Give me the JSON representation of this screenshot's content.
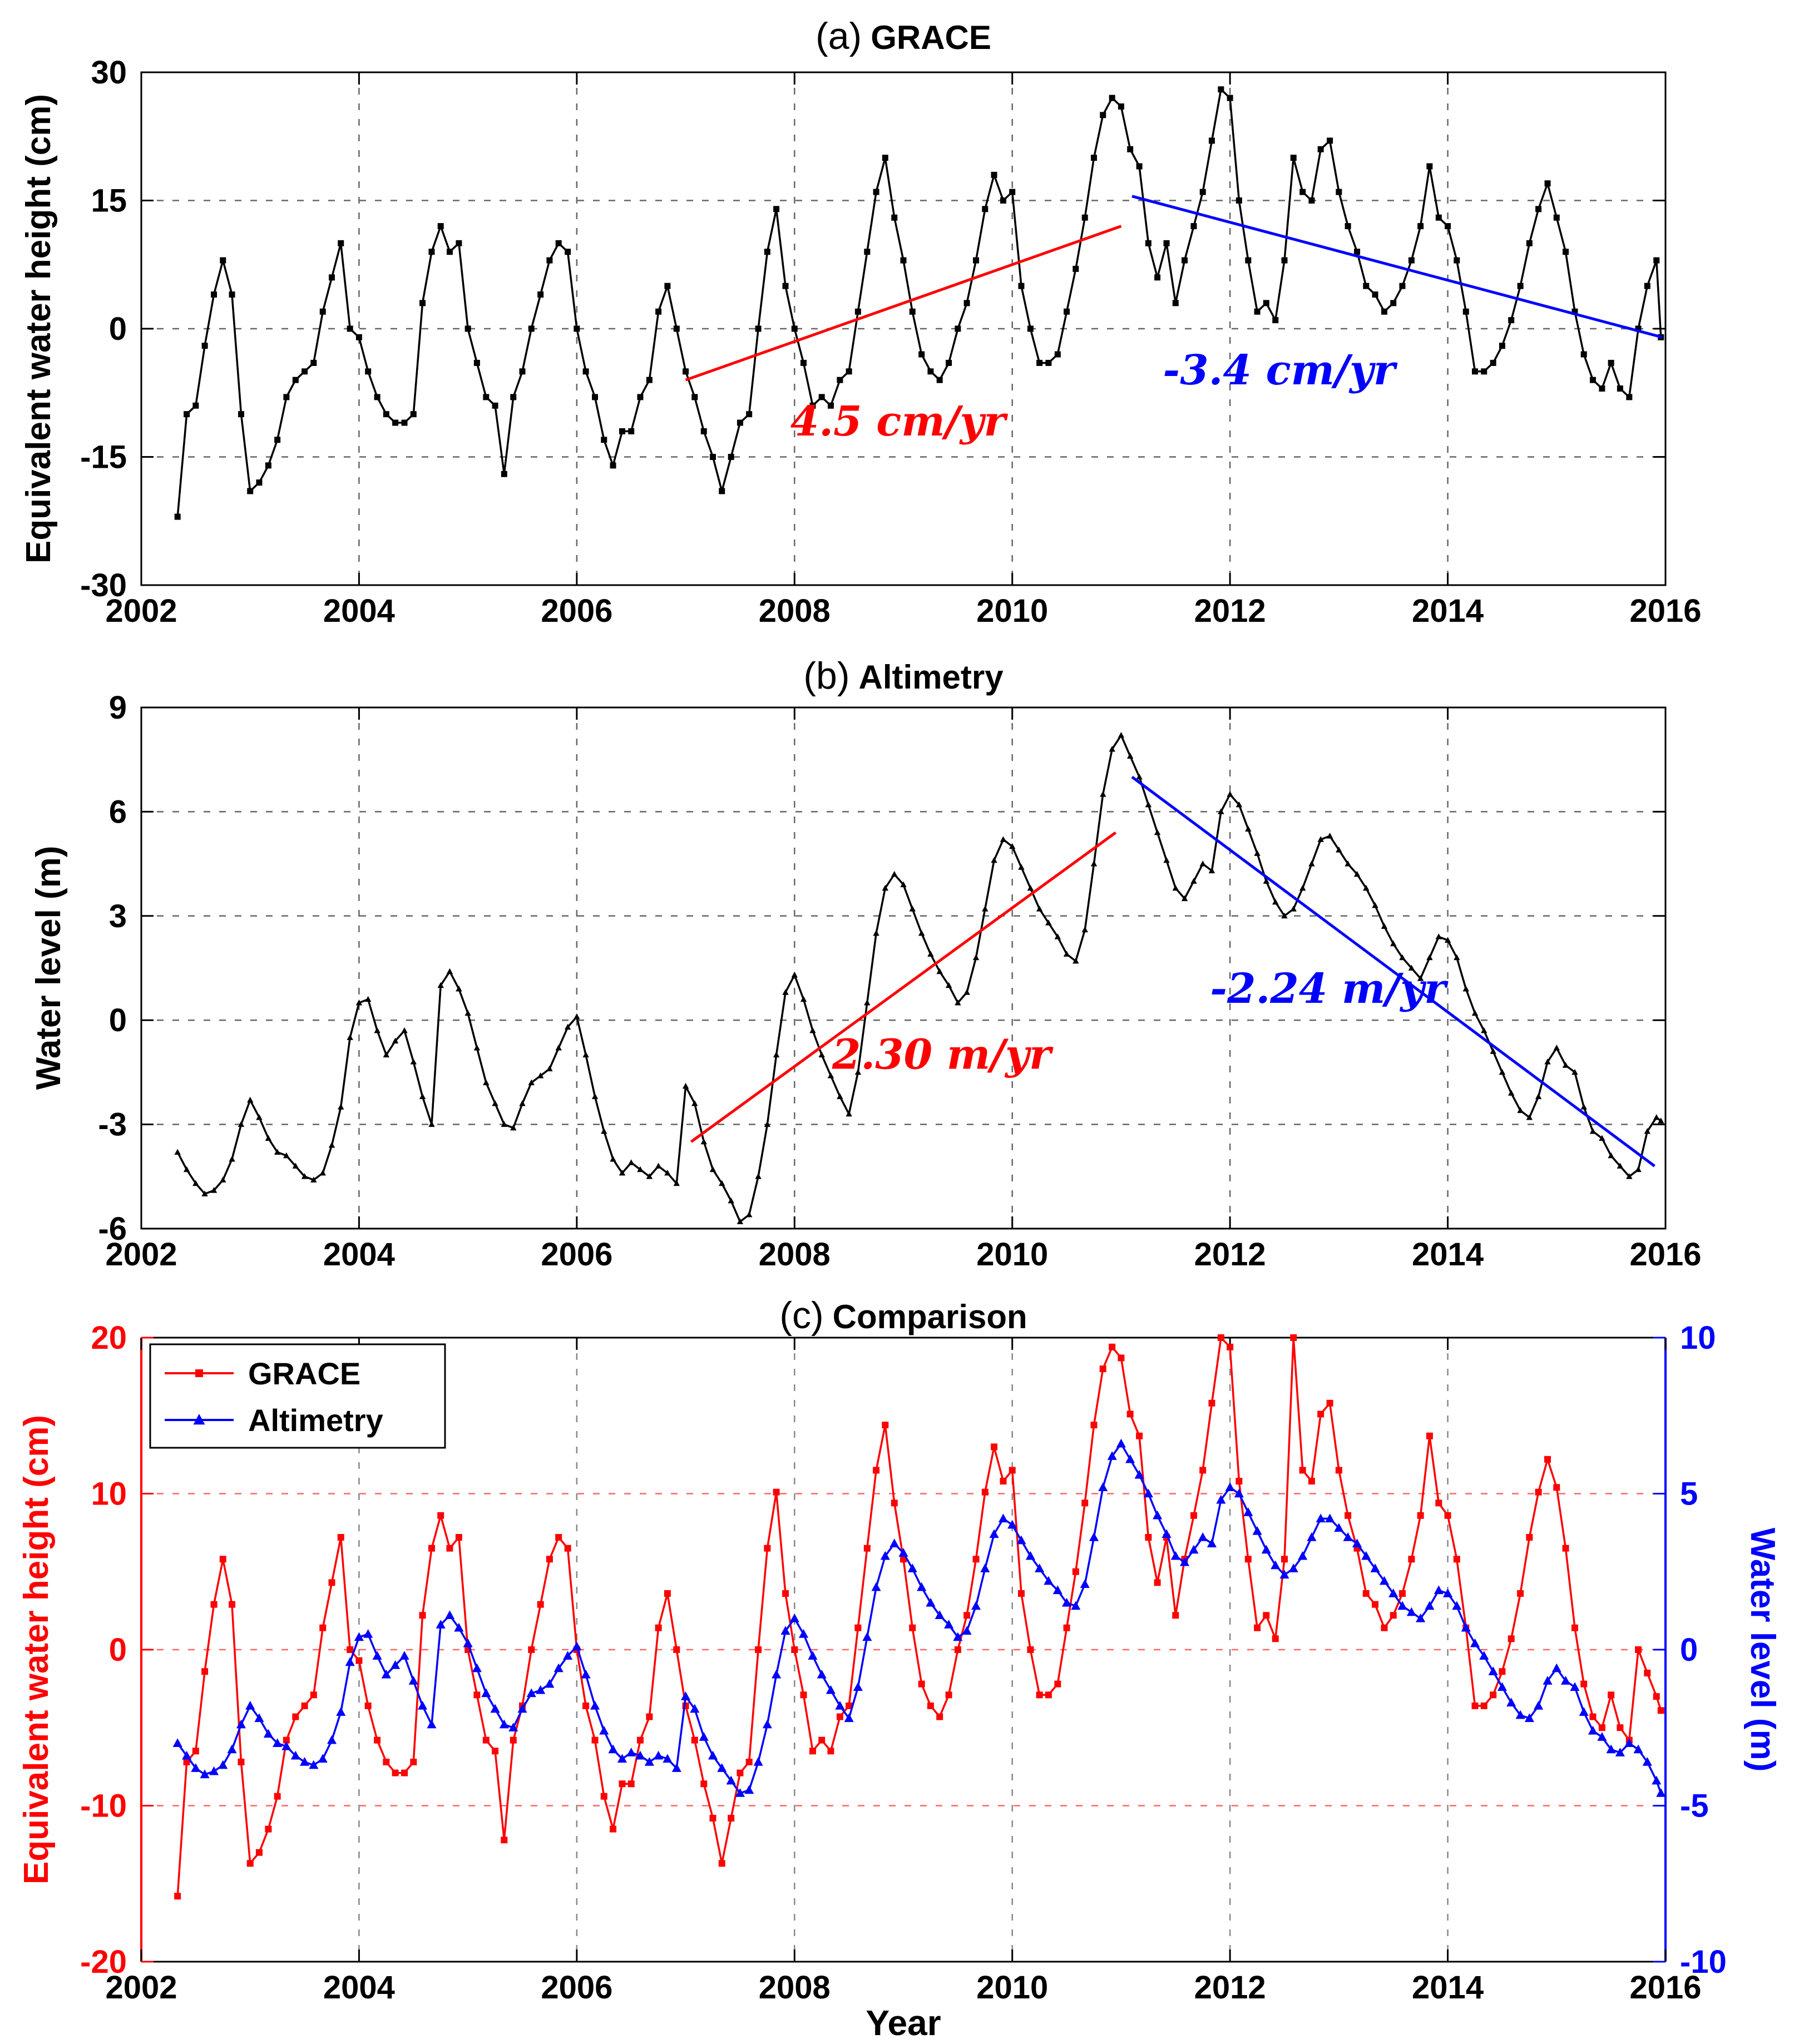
{
  "xlabel": "Year",
  "chart_data": {
    "type": "line",
    "x_monthly": [
      2002.333,
      2002.417,
      2002.5,
      2002.583,
      2002.667,
      2002.75,
      2002.833,
      2002.917,
      2003.0,
      2003.083,
      2003.167,
      2003.25,
      2003.333,
      2003.417,
      2003.5,
      2003.583,
      2003.667,
      2003.75,
      2003.833,
      2003.917,
      2004.0,
      2004.083,
      2004.167,
      2004.25,
      2004.333,
      2004.417,
      2004.5,
      2004.583,
      2004.667,
      2004.75,
      2004.833,
      2004.917,
      2005.0,
      2005.083,
      2005.167,
      2005.25,
      2005.333,
      2005.417,
      2005.5,
      2005.583,
      2005.667,
      2005.75,
      2005.833,
      2005.917,
      2006.0,
      2006.083,
      2006.167,
      2006.25,
      2006.333,
      2006.417,
      2006.5,
      2006.583,
      2006.667,
      2006.75,
      2006.833,
      2006.917,
      2007.0,
      2007.083,
      2007.167,
      2007.25,
      2007.333,
      2007.417,
      2007.5,
      2007.583,
      2007.667,
      2007.75,
      2007.833,
      2007.917,
      2008.0,
      2008.083,
      2008.167,
      2008.25,
      2008.333,
      2008.417,
      2008.5,
      2008.583,
      2008.667,
      2008.75,
      2008.833,
      2008.917,
      2009.0,
      2009.083,
      2009.167,
      2009.25,
      2009.333,
      2009.417,
      2009.5,
      2009.583,
      2009.667,
      2009.75,
      2009.833,
      2009.917,
      2010.0,
      2010.083,
      2010.167,
      2010.25,
      2010.333,
      2010.417,
      2010.5,
      2010.583,
      2010.667,
      2010.75,
      2010.833,
      2010.917,
      2011.0,
      2011.083,
      2011.167,
      2011.25,
      2011.333,
      2011.417,
      2011.5,
      2011.583,
      2011.667,
      2011.75,
      2011.833,
      2011.917,
      2012.0,
      2012.083,
      2012.167,
      2012.25,
      2012.333,
      2012.417,
      2012.5,
      2012.583,
      2012.667,
      2012.75,
      2012.833,
      2012.917,
      2013.0,
      2013.083,
      2013.167,
      2013.25,
      2013.333,
      2013.417,
      2013.5,
      2013.583,
      2013.667,
      2013.75,
      2013.833,
      2013.917,
      2014.0,
      2014.083,
      2014.167,
      2014.25,
      2014.333,
      2014.417,
      2014.5,
      2014.583,
      2014.667,
      2014.75,
      2014.833,
      2014.917,
      2015.0,
      2015.083,
      2015.167,
      2015.25,
      2015.333,
      2015.417,
      2015.5,
      2015.583,
      2015.667,
      2015.75,
      2015.833,
      2015.917,
      2015.958
    ],
    "panels": [
      {
        "id": "a",
        "title_prefix": "(a)",
        "title": "GRACE",
        "ylabel": "Equivalent water height (cm)",
        "xlim": [
          2002,
          2016
        ],
        "ylim": [
          -30,
          30
        ],
        "xticks": [
          2002,
          2004,
          2006,
          2008,
          2010,
          2012,
          2014,
          2016
        ],
        "yticks": [
          -30,
          -15,
          0,
          15,
          30
        ],
        "ygrid": [
          -15,
          0,
          15
        ],
        "series": [
          {
            "name": "GRACE",
            "color": "#000000",
            "marker": "square",
            "marker_size": 11,
            "y": [
              -22,
              -10,
              -9,
              -2,
              4,
              8,
              4,
              -10,
              -19,
              -18,
              -16,
              -13,
              -8,
              -6,
              -5,
              -4,
              2,
              6,
              10,
              0,
              -1,
              -5,
              -8,
              -10,
              -11,
              -11,
              -10,
              3,
              9,
              12,
              9,
              10,
              0,
              -4,
              -8,
              -9,
              -17,
              -8,
              -5,
              0,
              4,
              8,
              10,
              9,
              0,
              -5,
              -8,
              -13,
              -16,
              -12,
              -12,
              -8,
              -6,
              2,
              5,
              0,
              -5,
              -8,
              -12,
              -15,
              -19,
              -15,
              -11,
              -10,
              0,
              9,
              14,
              5,
              0,
              -4,
              -9,
              -8,
              -9,
              -6,
              -5,
              2,
              9,
              16,
              20,
              13,
              8,
              2,
              -3,
              -5,
              -6,
              -4,
              0,
              3,
              8,
              14,
              18,
              15,
              16,
              5,
              0,
              -4,
              -4,
              -3,
              2,
              7,
              13,
              20,
              25,
              27,
              26,
              21,
              19,
              10,
              6,
              10,
              3,
              8,
              12,
              16,
              22,
              28,
              27,
              15,
              8,
              2,
              3,
              1,
              8,
              20,
              16,
              15,
              21,
              22,
              16,
              12,
              9,
              5,
              4,
              2,
              3,
              5,
              8,
              12,
              19,
              13,
              12,
              8,
              2,
              -5,
              -5,
              -4,
              -2,
              1,
              5,
              10,
              14,
              17,
              13,
              9,
              2,
              -3,
              -6,
              -7,
              -4,
              -7,
              -8,
              0,
              5,
              8,
              -1
            ]
          }
        ],
        "trends": [
          {
            "x1": 2007.0,
            "y1": -6,
            "x2": 2011.0,
            "y2": 12,
            "color": "#ff0000",
            "label": "4.5 cm/yr",
            "label_x": 2008.95,
            "label_y": -12.5
          },
          {
            "x1": 2011.1,
            "y1": 15.5,
            "x2": 2015.97,
            "y2": -1,
            "color": "#0000ff",
            "label": "-3.4 cm/yr",
            "label_x": 2012.45,
            "label_y": -6.5
          }
        ]
      },
      {
        "id": "b",
        "title_prefix": "(b)",
        "title": "Altimetry",
        "ylabel": "Water level (m)",
        "xlim": [
          2002,
          2016
        ],
        "ylim": [
          -6,
          9
        ],
        "xticks": [
          2002,
          2004,
          2006,
          2008,
          2010,
          2012,
          2014,
          2016
        ],
        "yticks": [
          -6,
          -3,
          0,
          3,
          6,
          9
        ],
        "ygrid": [
          -3,
          0,
          3,
          6
        ],
        "series": [
          {
            "name": "Altimetry",
            "color": "#000000",
            "marker": "triangle",
            "marker_size": 6,
            "y": [
              -3.8,
              -4.3,
              -4.7,
              -5.0,
              -4.9,
              -4.6,
              -4.0,
              -3.0,
              -2.3,
              -2.8,
              -3.4,
              -3.8,
              -3.9,
              -4.2,
              -4.5,
              -4.6,
              -4.4,
              -3.6,
              -2.5,
              -0.5,
              0.5,
              0.6,
              -0.3,
              -1.0,
              -0.6,
              -0.3,
              -1.2,
              -2.2,
              -3.0,
              1.0,
              1.4,
              0.9,
              0.2,
              -0.8,
              -1.8,
              -2.4,
              -3.0,
              -3.1,
              -2.4,
              -1.8,
              -1.6,
              -1.4,
              -0.8,
              -0.2,
              0.1,
              -1.0,
              -2.2,
              -3.2,
              -4.0,
              -4.4,
              -4.1,
              -4.3,
              -4.5,
              -4.2,
              -4.4,
              -4.7,
              -1.9,
              -2.4,
              -3.5,
              -4.3,
              -4.7,
              -5.2,
              -5.8,
              -5.6,
              -4.5,
              -3.0,
              -1.0,
              0.8,
              1.3,
              0.6,
              -0.3,
              -1.0,
              -1.6,
              -2.2,
              -2.7,
              -1.5,
              0.5,
              2.5,
              3.8,
              4.2,
              3.9,
              3.2,
              2.5,
              1.9,
              1.4,
              1.0,
              0.5,
              0.8,
              1.8,
              3.2,
              4.6,
              5.2,
              5.0,
              4.4,
              3.8,
              3.2,
              2.8,
              2.4,
              1.9,
              1.7,
              2.6,
              4.5,
              6.5,
              7.8,
              8.2,
              7.6,
              7.0,
              6.2,
              5.4,
              4.6,
              3.8,
              3.5,
              4.0,
              4.5,
              4.3,
              6.0,
              6.5,
              6.2,
              5.5,
              4.8,
              4.0,
              3.4,
              3.0,
              3.2,
              3.8,
              4.5,
              5.2,
              5.3,
              4.9,
              4.5,
              4.2,
              3.8,
              3.3,
              2.7,
              2.2,
              1.8,
              1.5,
              1.2,
              1.8,
              2.4,
              2.3,
              1.8,
              0.9,
              0.2,
              -0.3,
              -0.9,
              -1.5,
              -2.1,
              -2.6,
              -2.8,
              -2.2,
              -1.2,
              -0.8,
              -1.3,
              -1.5,
              -2.5,
              -3.2,
              -3.4,
              -3.9,
              -4.2,
              -4.5,
              -4.3,
              -3.2,
              -2.8,
              -2.9
            ]
          }
        ],
        "trends": [
          {
            "x1": 2007.05,
            "y1": -3.5,
            "x2": 2010.95,
            "y2": 5.4,
            "color": "#ff0000",
            "label": "2.30 m/yr",
            "label_x": 2009.35,
            "label_y": -1.4
          },
          {
            "x1": 2011.1,
            "y1": 7.0,
            "x2": 2015.9,
            "y2": -4.2,
            "color": "#0000ff",
            "label": "-2.24 m/yr",
            "label_x": 2012.9,
            "label_y": 0.5
          }
        ]
      },
      {
        "id": "c",
        "title_prefix": "(c)",
        "title": "Comparison",
        "ylabel": "Equivalent water height (cm)",
        "ylabel_right": "Water level (m)",
        "left_axis_color": "#ff0000",
        "right_axis_color": "#0000ff",
        "xlim": [
          2002,
          2016
        ],
        "ylim": [
          -20,
          20
        ],
        "ylim_right": [
          -10,
          10
        ],
        "xticks": [
          2002,
          2004,
          2006,
          2008,
          2010,
          2012,
          2014,
          2016
        ],
        "yticks": [
          -20,
          -10,
          0,
          10,
          20
        ],
        "yticks_right": [
          -10,
          -5,
          0,
          5,
          10
        ],
        "ygrid": [
          -10,
          0,
          10
        ],
        "grid_h_color": "#ff6666",
        "grid_v_color": "#888888",
        "legend": true,
        "series": [
          {
            "name": "GRACE",
            "color": "#ff0000",
            "marker": "square",
            "marker_size": 12,
            "axis": "left",
            "y": [
              -15.8,
              -7.2,
              -6.5,
              -1.4,
              2.9,
              5.8,
              2.9,
              -7.2,
              -13.7,
              -13.0,
              -11.5,
              -9.4,
              -5.8,
              -4.3,
              -3.6,
              -2.9,
              1.4,
              4.3,
              7.2,
              0,
              -0.7,
              -3.6,
              -5.8,
              -7.2,
              -7.9,
              -7.9,
              -7.2,
              2.2,
              6.5,
              8.6,
              6.5,
              7.2,
              0,
              -2.9,
              -5.8,
              -6.5,
              -12.2,
              -5.8,
              -3.6,
              0,
              2.9,
              5.8,
              7.2,
              6.5,
              0,
              -3.6,
              -5.8,
              -9.4,
              -11.5,
              -8.6,
              -8.6,
              -5.8,
              -4.3,
              1.4,
              3.6,
              0,
              -3.6,
              -5.8,
              -8.6,
              -10.8,
              -13.7,
              -10.8,
              -7.9,
              -7.2,
              0,
              6.5,
              10.1,
              3.6,
              0,
              -2.9,
              -6.5,
              -5.8,
              -6.5,
              -4.3,
              -3.6,
              1.4,
              6.5,
              11.5,
              14.4,
              9.4,
              5.8,
              1.4,
              -2.2,
              -3.6,
              -4.3,
              -2.9,
              0,
              2.2,
              5.8,
              10.1,
              13.0,
              10.8,
              11.5,
              3.6,
              0,
              -2.9,
              -2.9,
              -2.2,
              1.4,
              5.0,
              9.4,
              14.4,
              18.0,
              19.4,
              18.7,
              15.1,
              13.7,
              7.2,
              4.3,
              7.2,
              2.2,
              5.8,
              8.6,
              11.5,
              15.8,
              20.0,
              19.4,
              10.8,
              5.8,
              1.4,
              2.2,
              0.7,
              5.8,
              20.0,
              11.5,
              10.8,
              15.1,
              15.8,
              11.5,
              8.6,
              6.5,
              3.6,
              2.9,
              1.4,
              2.2,
              3.6,
              5.8,
              8.6,
              13.7,
              9.4,
              8.6,
              5.8,
              1.4,
              -3.6,
              -3.6,
              -2.9,
              -1.4,
              0.7,
              3.6,
              7.2,
              10.1,
              12.2,
              10.4,
              6.5,
              1.4,
              -2.2,
              -4.3,
              -5.0,
              -2.9,
              -5.0,
              -5.8,
              0,
              -1.5,
              -3.0,
              -3.9
            ]
          },
          {
            "name": "Altimetry",
            "color": "#0000ff",
            "marker": "triangle",
            "marker_size": 9,
            "axis": "right",
            "y": [
              -3.0,
              -3.4,
              -3.8,
              -4.0,
              -3.9,
              -3.7,
              -3.2,
              -2.4,
              -1.8,
              -2.2,
              -2.7,
              -3.0,
              -3.1,
              -3.4,
              -3.6,
              -3.7,
              -3.5,
              -2.9,
              -2.0,
              -0.4,
              0.4,
              0.5,
              -0.2,
              -0.8,
              -0.5,
              -0.2,
              -1.0,
              -1.8,
              -2.4,
              0.8,
              1.1,
              0.7,
              0.2,
              -0.6,
              -1.4,
              -1.9,
              -2.4,
              -2.5,
              -1.9,
              -1.4,
              -1.3,
              -1.1,
              -0.6,
              -0.2,
              0.1,
              -0.8,
              -1.8,
              -2.6,
              -3.2,
              -3.5,
              -3.3,
              -3.4,
              -3.6,
              -3.4,
              -3.5,
              -3.8,
              -1.5,
              -1.9,
              -2.8,
              -3.4,
              -3.8,
              -4.2,
              -4.6,
              -4.5,
              -3.6,
              -2.4,
              -0.8,
              0.6,
              1.0,
              0.5,
              -0.2,
              -0.8,
              -1.3,
              -1.8,
              -2.2,
              -1.2,
              0.4,
              2.0,
              3.0,
              3.4,
              3.1,
              2.6,
              2.0,
              1.5,
              1.1,
              0.8,
              0.4,
              0.6,
              1.4,
              2.6,
              3.7,
              4.2,
              4.0,
              3.5,
              3.0,
              2.6,
              2.2,
              1.9,
              1.5,
              1.4,
              2.1,
              3.6,
              5.2,
              6.2,
              6.6,
              6.1,
              5.6,
              5.0,
              4.3,
              3.7,
              3.0,
              2.8,
              3.2,
              3.6,
              3.4,
              4.8,
              5.2,
              5.0,
              4.4,
              3.8,
              3.2,
              2.7,
              2.4,
              2.6,
              3.0,
              3.6,
              4.2,
              4.2,
              3.9,
              3.6,
              3.4,
              3.0,
              2.6,
              2.2,
              1.8,
              1.4,
              1.2,
              1.0,
              1.4,
              1.9,
              1.8,
              1.4,
              0.7,
              0.2,
              -0.2,
              -0.7,
              -1.2,
              -1.7,
              -2.1,
              -2.2,
              -1.8,
              -1.0,
              -0.6,
              -1.0,
              -1.2,
              -2.0,
              -2.6,
              -2.8,
              -3.2,
              -3.3,
              -3.0,
              -3.2,
              -3.6,
              -4.2,
              -4.6
            ]
          }
        ],
        "trends": []
      }
    ]
  }
}
